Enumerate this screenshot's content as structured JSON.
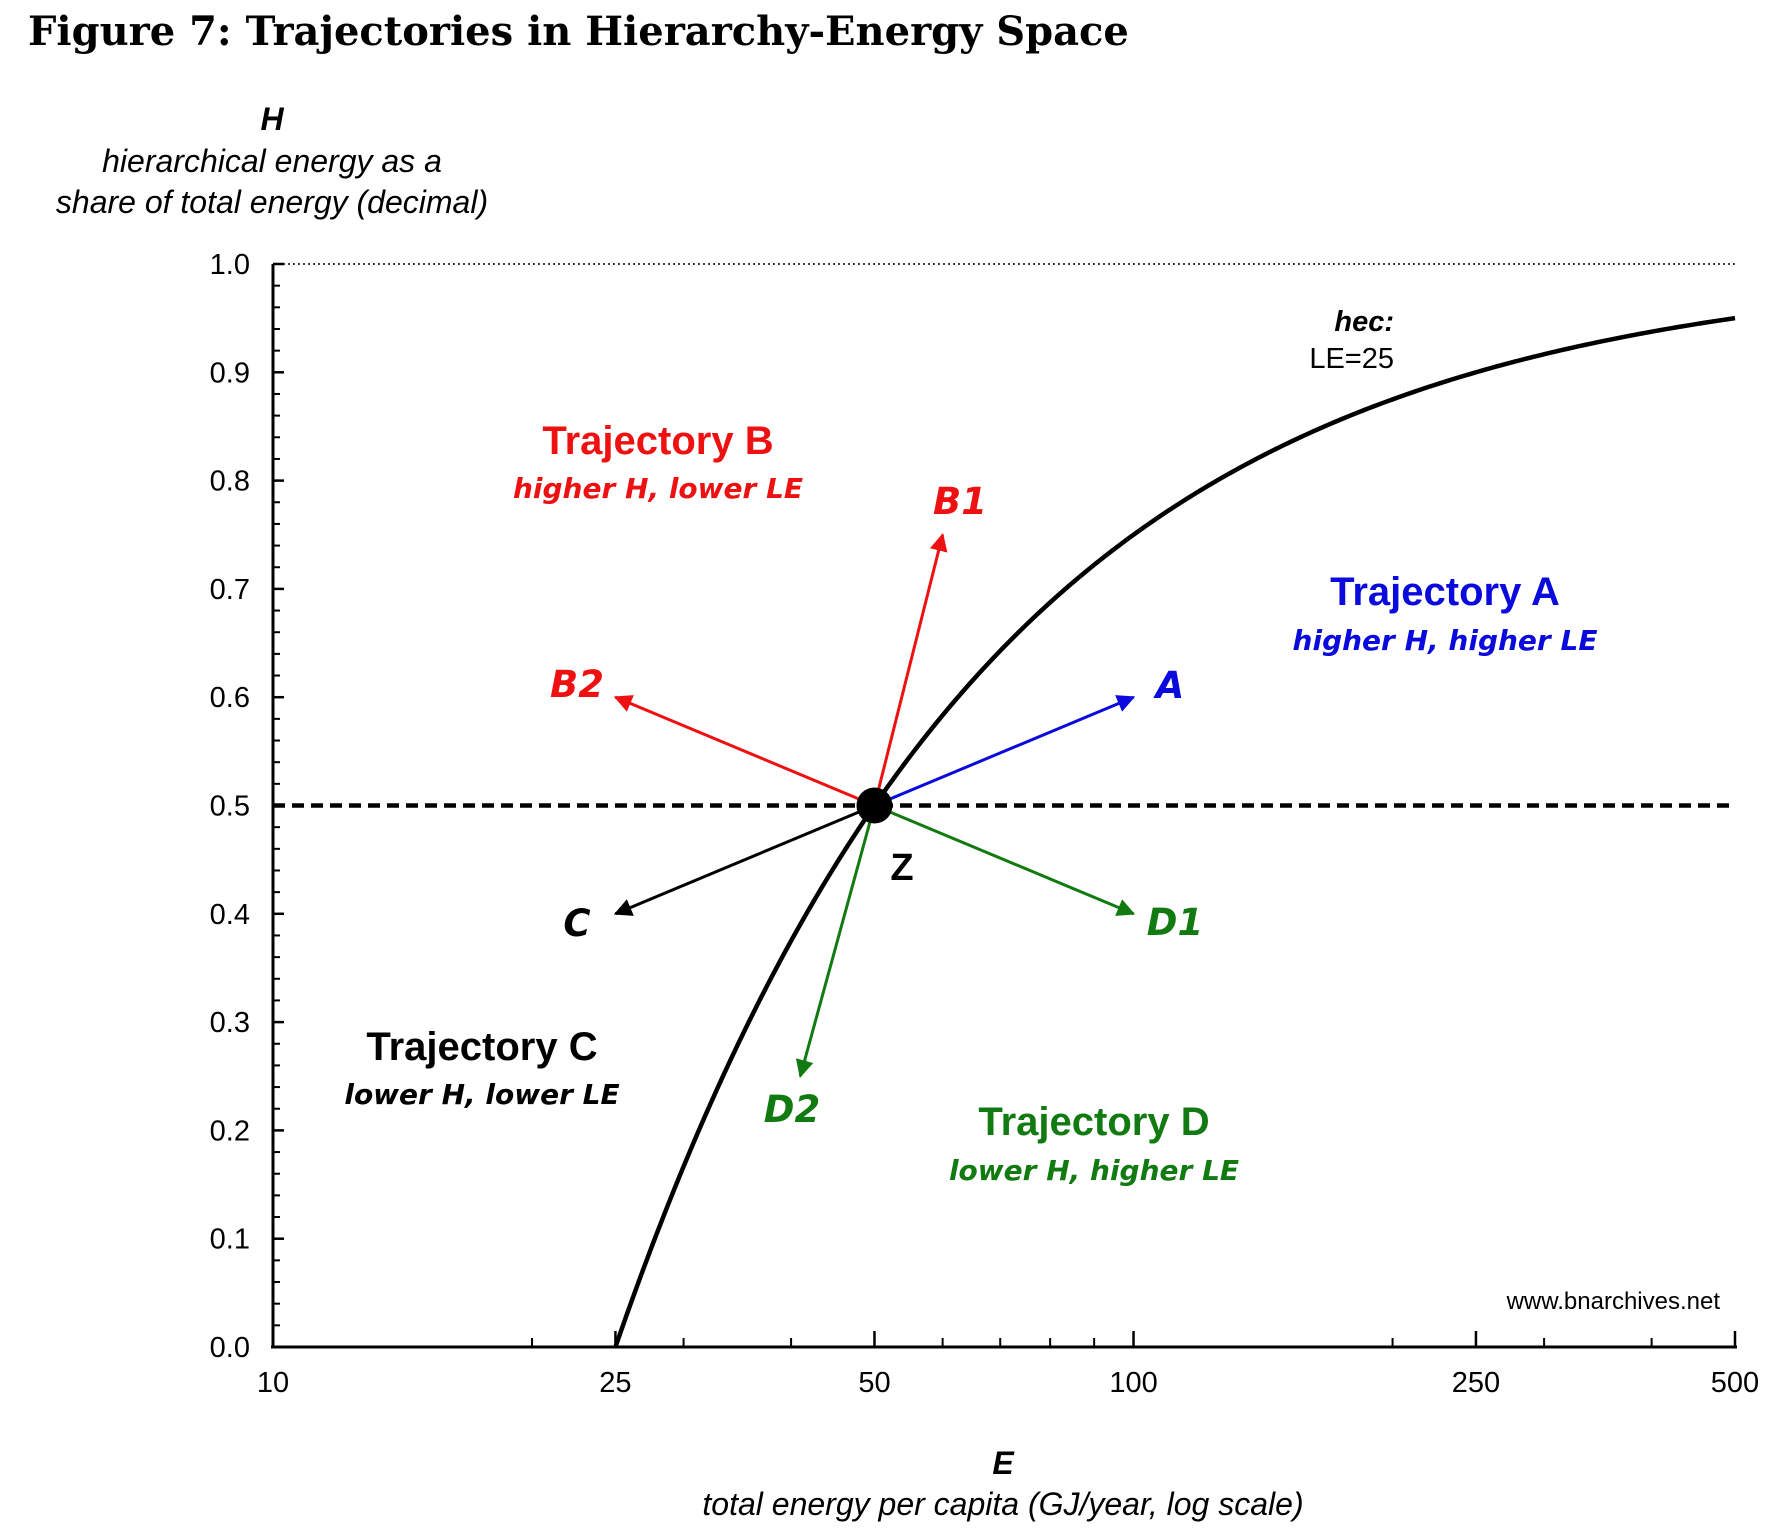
{
  "figure_title": "Figure 7: Trajectories in Hierarchy-Energy Space",
  "source_note": "www.bnarchives.net",
  "chart_data": {
    "type": "line",
    "x_scale": "log",
    "xlim": [
      10,
      500
    ],
    "ylim": [
      0,
      1
    ],
    "x_ticks": [
      {
        "value": 10,
        "label": "10"
      },
      {
        "value": 25,
        "label": "25"
      },
      {
        "value": 50,
        "label": "50"
      },
      {
        "value": 100,
        "label": "100"
      },
      {
        "value": 250,
        "label": "250"
      },
      {
        "value": 500,
        "label": "500"
      }
    ],
    "y_ticks": [
      {
        "value": 0.0,
        "label": "0.0"
      },
      {
        "value": 0.1,
        "label": "0.1"
      },
      {
        "value": 0.2,
        "label": "0.2"
      },
      {
        "value": 0.3,
        "label": "0.3"
      },
      {
        "value": 0.4,
        "label": "0.4"
      },
      {
        "value": 0.5,
        "label": "0.5"
      },
      {
        "value": 0.6,
        "label": "0.6"
      },
      {
        "value": 0.7,
        "label": "0.7"
      },
      {
        "value": 0.8,
        "label": "0.8"
      },
      {
        "value": 0.9,
        "label": "0.9"
      },
      {
        "value": 1.0,
        "label": "1.0"
      }
    ],
    "y_axis": {
      "symbol": "H",
      "label_line1": "hierarchical energy as a",
      "label_line2": "share of total energy (decimal)"
    },
    "x_axis": {
      "symbol": "E",
      "label": "total energy per capita (GJ/year, log scale)"
    },
    "curve": {
      "name": "hec:",
      "value_label": "LE=25",
      "formula": "H = 1 - LE / E",
      "LE": 25,
      "color": "#000000"
    },
    "reference_lines": [
      {
        "y": 1.0,
        "style": "dotted"
      },
      {
        "y": 0.5,
        "style": "dashed"
      }
    ],
    "point": {
      "label": "Z",
      "x": 50,
      "y": 0.5
    },
    "arrows": [
      {
        "label": "A",
        "to_x": 100,
        "to_y": 0.6,
        "color": "#0a0adc"
      },
      {
        "label": "B1",
        "to_x": 60,
        "to_y": 0.75,
        "color": "#ee1111"
      },
      {
        "label": "B2",
        "to_x": 25,
        "to_y": 0.6,
        "color": "#ee1111"
      },
      {
        "label": "C",
        "to_x": 25,
        "to_y": 0.4,
        "color": "#000000"
      },
      {
        "label": "D1",
        "to_x": 100,
        "to_y": 0.4,
        "color": "#117a11"
      },
      {
        "label": "D2",
        "to_x": 41,
        "to_y": 0.25,
        "color": "#117a11"
      }
    ],
    "regions": [
      {
        "title": "Trajectory A",
        "subtitle": "higher H, higher LE",
        "color": "#0a0adc"
      },
      {
        "title": "Trajectory B",
        "subtitle": "higher H, lower LE",
        "color": "#ee1111"
      },
      {
        "title": "Trajectory C",
        "subtitle": "lower H, lower LE",
        "color": "#000000"
      },
      {
        "title": "Trajectory D",
        "subtitle": "lower H, higher LE",
        "color": "#117a11"
      }
    ]
  }
}
